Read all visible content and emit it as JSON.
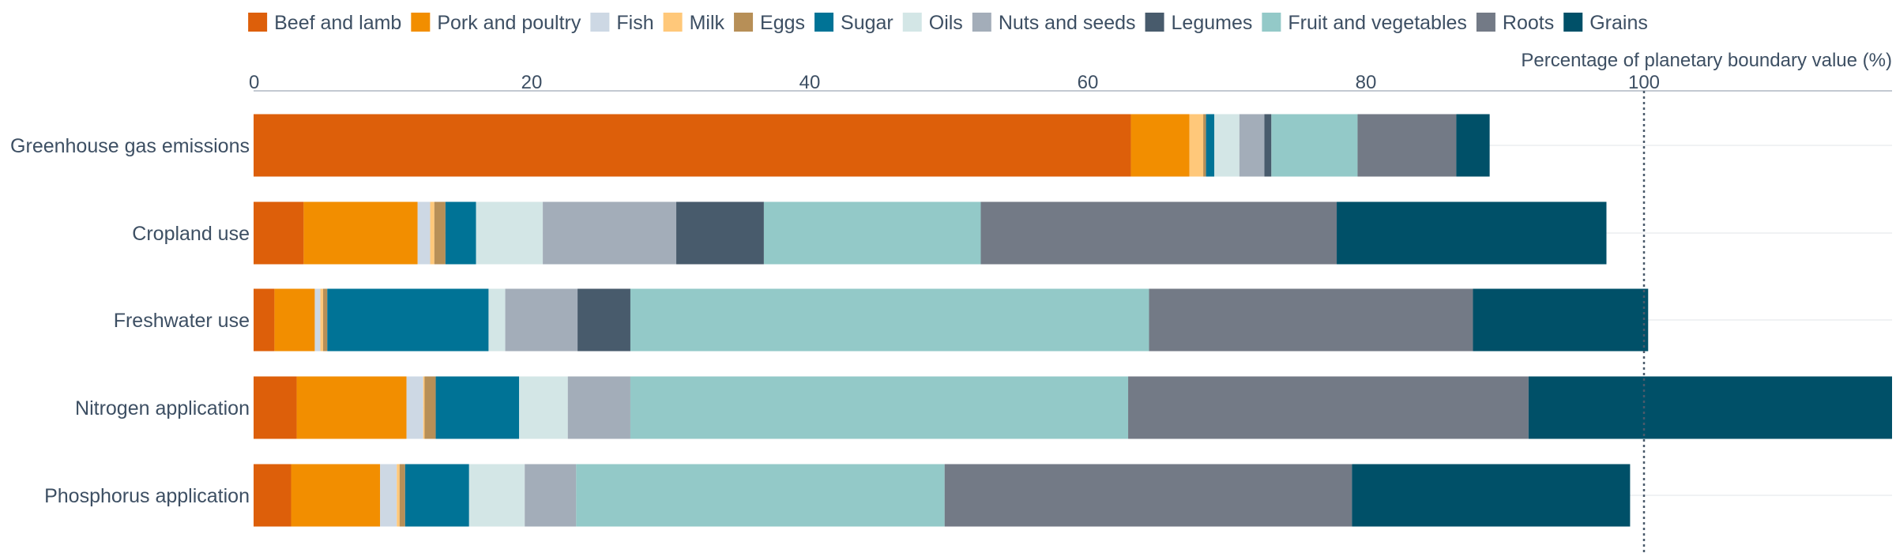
{
  "chart_data": {
    "type": "bar",
    "orientation": "horizontal",
    "stacked": true,
    "xlabel": "Percentage of planetary boundary value (%)",
    "xlim": [
      0,
      118
    ],
    "xticks": [
      0,
      20,
      40,
      60,
      80,
      100
    ],
    "reference_line": {
      "value": 100,
      "style": "dotted"
    },
    "legend_position": "top",
    "grid": "horizontal",
    "categories": [
      "Greenhouse gas emissions",
      "Cropland use",
      "Freshwater use",
      "Nitrogen application",
      "Phosphorus application"
    ],
    "series": [
      {
        "name": "Beef and lamb",
        "color": "#dd5f0a",
        "values": [
          63.1,
          3.6,
          1.5,
          3.1,
          2.7
        ]
      },
      {
        "name": "Pork and poultry",
        "color": "#f28e00",
        "values": [
          4.2,
          8.2,
          2.9,
          7.9,
          6.4
        ]
      },
      {
        "name": "Fish",
        "color": "#cdd8e4",
        "values": [
          0.0,
          0.9,
          0.4,
          1.2,
          1.2
        ]
      },
      {
        "name": "Milk",
        "color": "#ffc87a",
        "values": [
          1.0,
          0.3,
          0.2,
          0.1,
          0.2
        ]
      },
      {
        "name": "Eggs",
        "color": "#b78f57",
        "values": [
          0.2,
          0.8,
          0.3,
          0.8,
          0.4
        ]
      },
      {
        "name": "Sugar",
        "color": "#007396",
        "values": [
          0.6,
          2.2,
          11.6,
          6.0,
          4.6
        ]
      },
      {
        "name": "Oils",
        "color": "#d3e6e6",
        "values": [
          1.8,
          4.8,
          1.2,
          3.5,
          4.0
        ]
      },
      {
        "name": "Nuts and seeds",
        "color": "#a3adb9",
        "values": [
          1.8,
          9.6,
          5.2,
          4.5,
          3.7
        ]
      },
      {
        "name": "Legumes",
        "color": "#485b6c",
        "values": [
          0.5,
          6.3,
          3.8,
          0.0,
          0.0
        ]
      },
      {
        "name": "Fruit and vegetables",
        "color": "#93c9c8",
        "values": [
          6.2,
          15.6,
          37.3,
          35.8,
          26.5
        ]
      },
      {
        "name": "Roots",
        "color": "#737a86",
        "values": [
          7.1,
          25.6,
          23.3,
          28.8,
          29.3
        ]
      },
      {
        "name": "Grains",
        "color": "#005068",
        "values": [
          2.4,
          19.4,
          12.6,
          26.3,
          20.0
        ]
      }
    ]
  }
}
